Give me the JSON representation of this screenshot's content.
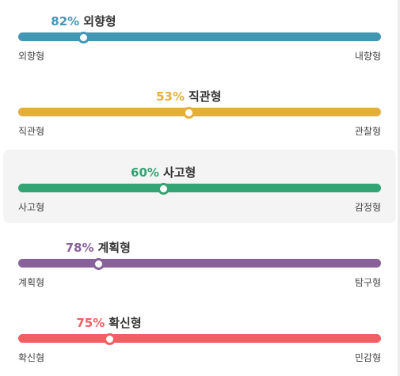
{
  "traits": [
    {
      "id": "energy",
      "percent": "82%",
      "value": 82,
      "type": "외향형",
      "left": "외향형",
      "right": "내향형",
      "color": "#4298b4",
      "active": false
    },
    {
      "id": "mind",
      "percent": "53%",
      "value": 53,
      "type": "직관형",
      "left": "직관형",
      "right": "관찰형",
      "color": "#e4ae3a",
      "active": false
    },
    {
      "id": "nature",
      "percent": "60%",
      "value": 60,
      "type": "사고형",
      "left": "사고형",
      "right": "감정형",
      "color": "#33a474",
      "active": true
    },
    {
      "id": "tactics",
      "percent": "78%",
      "value": 78,
      "type": "계획형",
      "left": "계획형",
      "right": "탐구형",
      "color": "#88619a",
      "active": false
    },
    {
      "id": "identity",
      "percent": "75%",
      "value": 75,
      "type": "확신형",
      "left": "확신형",
      "right": "민감형",
      "color": "#f25e62",
      "active": false
    }
  ]
}
